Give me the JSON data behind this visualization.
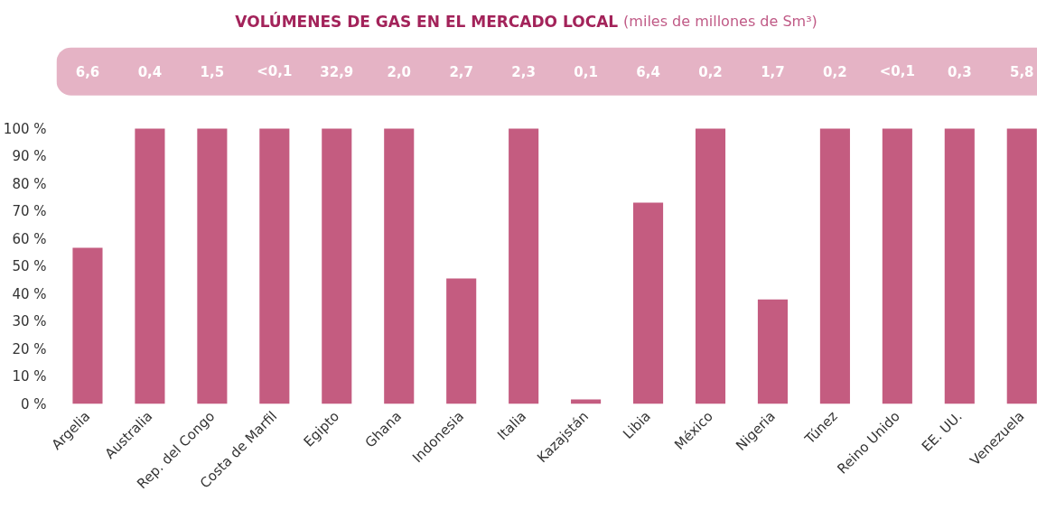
{
  "chart_data": {
    "type": "bar",
    "title": "VOLÚMENES DE GAS EN EL MERCADO LOCAL",
    "subtitle": "(miles de millones de Sm³)",
    "categories": [
      "Argelia",
      "Australia",
      "Rep. del Congo",
      "Costa de Marfil",
      "Egipto",
      "Ghana",
      "Indonesia",
      "Italia",
      "Kazajstán",
      "Libia",
      "México",
      "Nigeria",
      "Túnez",
      "Reino Unido",
      "EE. UU.",
      "Venezuela"
    ],
    "values": [
      56.7,
      100,
      100,
      100,
      100,
      100,
      45.6,
      100,
      1.6,
      73.1,
      100,
      38.0,
      100,
      100,
      100,
      100
    ],
    "color": "#c45c80",
    "ylim": [
      0,
      100
    ],
    "yticks": [
      {
        "value": 0,
        "label": "0 %"
      },
      {
        "value": 10,
        "label": "10 %"
      },
      {
        "value": 20,
        "label": "20 %"
      },
      {
        "value": 30,
        "label": "30 %"
      },
      {
        "value": 40,
        "label": "40 %"
      },
      {
        "value": 50,
        "label": "50 %"
      },
      {
        "value": 60,
        "label": "60 %"
      },
      {
        "value": 70,
        "label": "70 %"
      },
      {
        "value": 80,
        "label": "80 %"
      },
      {
        "value": 90,
        "label": "90 %"
      },
      {
        "value": 100,
        "label": "100 %"
      }
    ],
    "grid": false,
    "annotations": [
      "6,6",
      "0,4",
      "1,5",
      "<0,1",
      "32,9",
      "2,0",
      "2,7",
      "2,3",
      "0,1",
      "6,4",
      "0,2",
      "1,7",
      "0,2",
      "<0,1",
      "0,3",
      "5,8"
    ]
  }
}
